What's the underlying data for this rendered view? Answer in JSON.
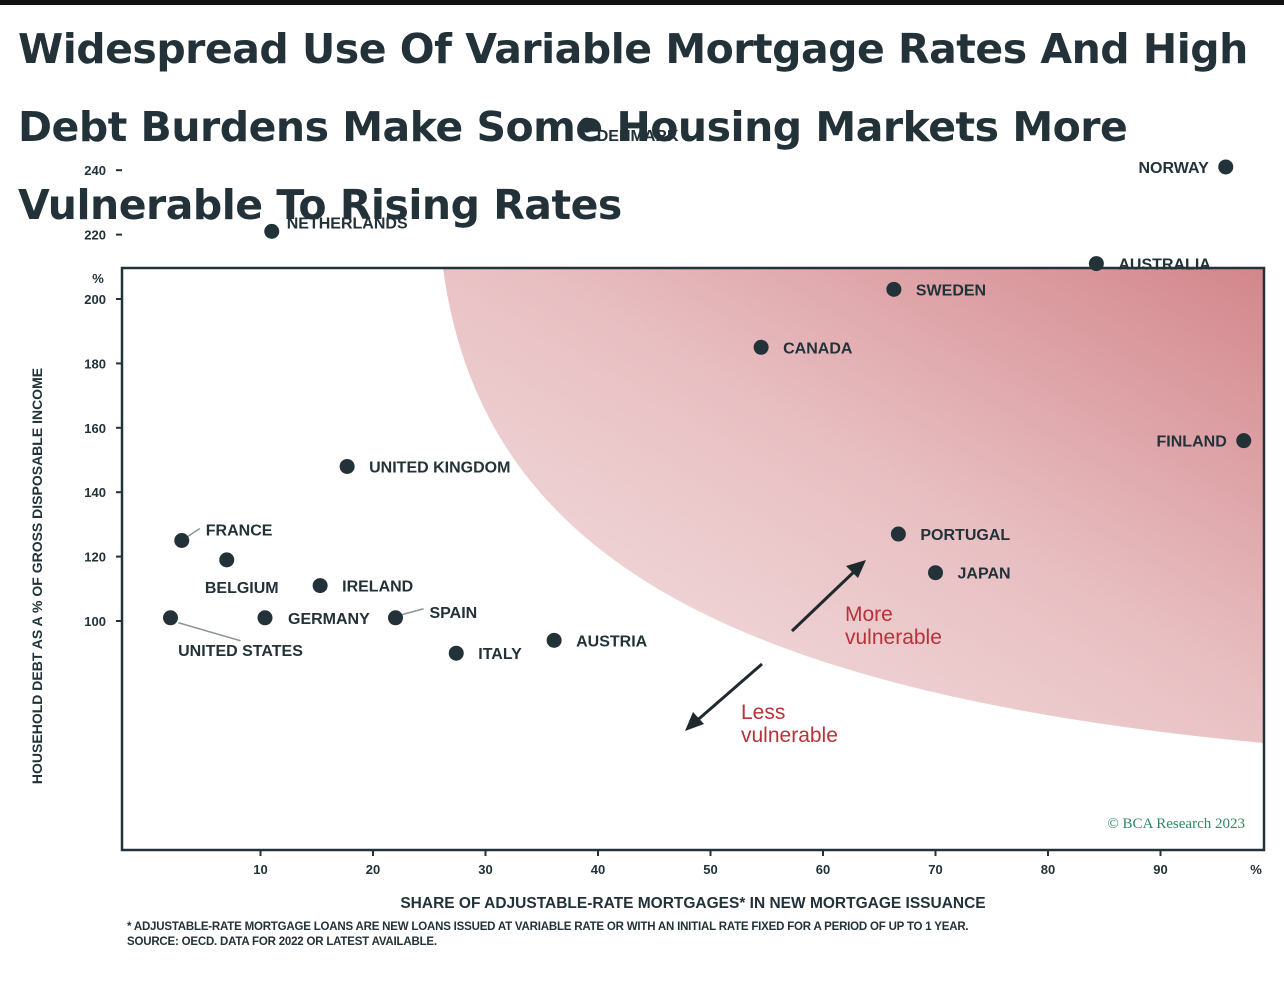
{
  "title": "Widespread Use Of Variable Mortgage Rates And High Debt Burdens Make Some Housing Markets More Vulnerable To Rising Rates",
  "footnote": "* ADJUSTABLE-RATE MORTGAGE LOANS ARE NEW LOANS ISSUED AT VARIABLE RATE OR WITH AN INITIAL RATE FIXED FOR A PERIOD OF UP TO 1 YEAR.",
  "source": "SOURCE: OECD. DATA FOR 2022 OR LATEST AVAILABLE.",
  "colors": {
    "text": "#223238",
    "accent": "#b8323a",
    "zone": "#cf7c82",
    "axis": "#223238"
  },
  "chart_data": {
    "type": "scatter",
    "xlabel": "SHARE OF ADJUSTABLE-RATE MORTGAGES* IN NEW MORTGAGE ISSUANCE",
    "ylabel": "HOUSEHOLD DEBT AS A % OF GROSS DISPOSABLE INCOME",
    "x_unit": "%",
    "y_unit": "%",
    "xlim": [
      0,
      100
    ],
    "ylim": [
      80,
      260
    ],
    "x_ticks": [
      10,
      20,
      30,
      40,
      50,
      60,
      70,
      80,
      90
    ],
    "y_ticks": [
      100,
      120,
      140,
      160,
      180,
      200,
      220,
      240
    ],
    "grid": false,
    "points": [
      {
        "name": "DENMARK",
        "x": 39,
        "y": 254
      },
      {
        "name": "NORWAY",
        "x": 95.8,
        "y": 241
      },
      {
        "name": "NETHERLANDS",
        "x": 11,
        "y": 221
      },
      {
        "name": "AUSTRALIA",
        "x": 84.3,
        "y": 211
      },
      {
        "name": "SWEDEN",
        "x": 66.3,
        "y": 203
      },
      {
        "name": "CANADA",
        "x": 54.5,
        "y": 185
      },
      {
        "name": "FINLAND",
        "x": 97.4,
        "y": 156
      },
      {
        "name": "UNITED KINGDOM",
        "x": 17.7,
        "y": 148
      },
      {
        "name": "PORTUGAL",
        "x": 66.7,
        "y": 127
      },
      {
        "name": "FRANCE",
        "x": 3,
        "y": 125
      },
      {
        "name": "BELGIUM",
        "x": 7,
        "y": 119
      },
      {
        "name": "JAPAN",
        "x": 70,
        "y": 115
      },
      {
        "name": "IRELAND",
        "x": 15.3,
        "y": 111
      },
      {
        "name": "UNITED STATES",
        "x": 2,
        "y": 101
      },
      {
        "name": "GERMANY",
        "x": 10.4,
        "y": 101
      },
      {
        "name": "SPAIN",
        "x": 22,
        "y": 101
      },
      {
        "name": "AUSTRIA",
        "x": 36.1,
        "y": 94
      },
      {
        "name": "ITALY",
        "x": 27.4,
        "y": 90
      }
    ],
    "annotations": {
      "more": [
        "More",
        "vulnerable"
      ],
      "less": [
        "Less",
        "vulnerable"
      ],
      "credit": "© BCA Research 2023"
    }
  }
}
